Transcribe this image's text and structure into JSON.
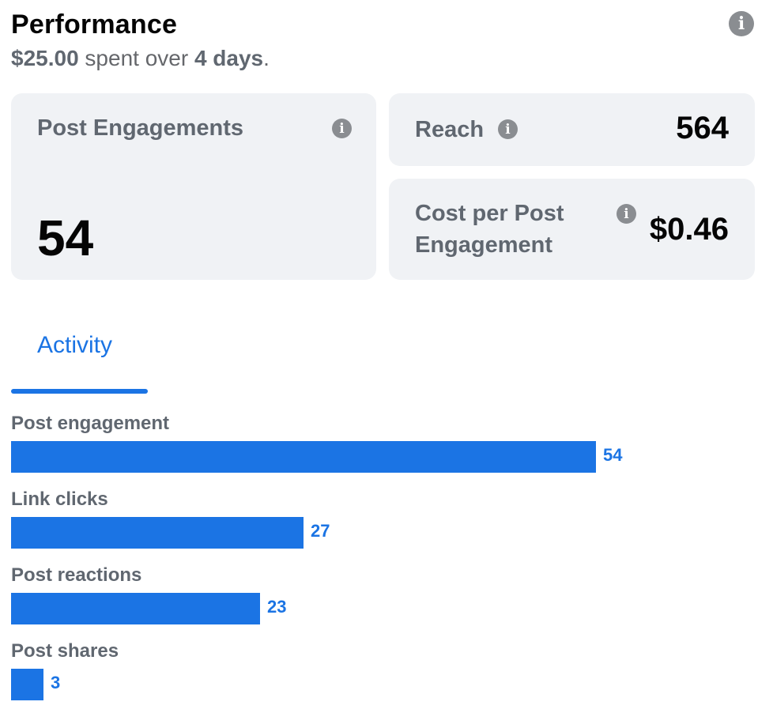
{
  "header": {
    "title": "Performance",
    "spent_amount": "$25.00",
    "spent_text": "spent over",
    "spent_duration": "4 days",
    "spent_period": "."
  },
  "metrics": {
    "post_engagements": {
      "label": "Post Engagements",
      "value": "54"
    },
    "reach": {
      "label": "Reach",
      "value": "564"
    },
    "cost_per_engagement": {
      "label": "Cost per Post Engagement",
      "value": "$0.46"
    }
  },
  "tabs": [
    {
      "label": "Activity",
      "selected": true
    }
  ],
  "chart_data": {
    "type": "bar",
    "orientation": "horizontal",
    "categories": [
      "Post engagement",
      "Link clicks",
      "Post reactions",
      "Post shares"
    ],
    "values": [
      54,
      27,
      23,
      3
    ],
    "xlim": [
      0,
      54
    ],
    "color": "#1b74e4"
  },
  "colors": {
    "accent": "#1b74e4",
    "card_bg": "#f0f2f5",
    "muted_text": "#606770",
    "info_icon": "#8a8d91"
  }
}
